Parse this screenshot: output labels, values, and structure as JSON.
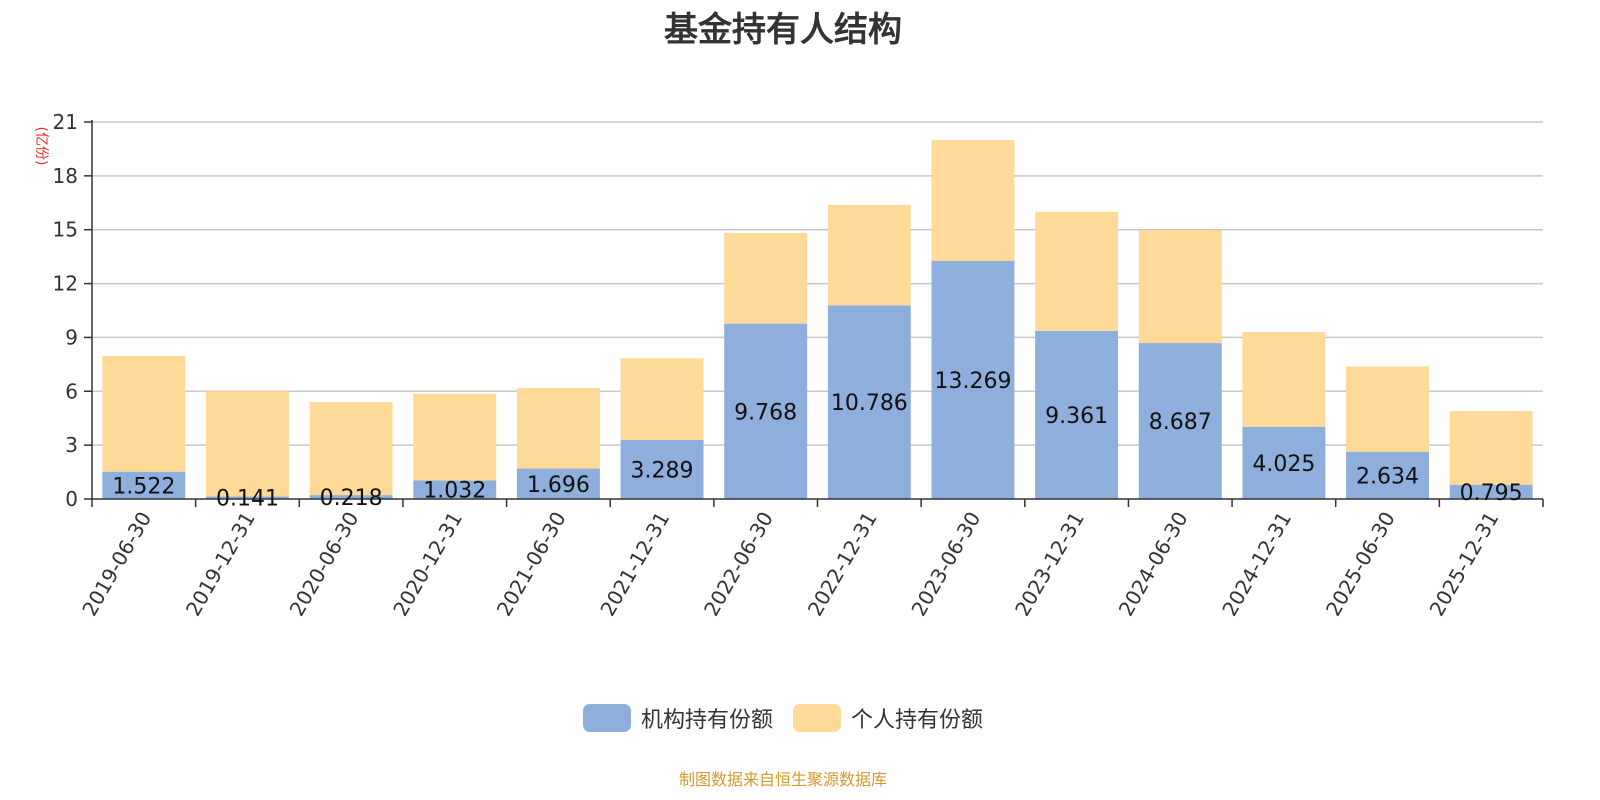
{
  "title": "基金持有人结构",
  "source": "制图数据来自恒生聚源数据库",
  "colors": {
    "institution": "#8eaedb",
    "individual": "#fed998",
    "unit": "#e8312a",
    "source": "#d39a2c",
    "grid": "#c8c8c8",
    "axis": "#333333"
  },
  "legend": [
    {
      "label": "机构持有份额",
      "color": "#8eaedb"
    },
    {
      "label": "个人持有份额",
      "color": "#fed998"
    }
  ],
  "chart_data": {
    "type": "bar",
    "stacked": true,
    "title": "基金持有人结构",
    "ylabel": "(亿份)",
    "ylim": [
      0,
      21
    ],
    "yticks": [
      0,
      3,
      6,
      9,
      12,
      15,
      18,
      21
    ],
    "grid": true,
    "legend_position": "bottom",
    "categories": [
      "2019-06-30",
      "2019-12-31",
      "2020-06-30",
      "2020-12-31",
      "2021-06-30",
      "2021-12-31",
      "2022-06-30",
      "2022-12-31",
      "2023-06-30",
      "2023-12-31",
      "2024-06-30",
      "2024-12-31",
      "2025-06-30",
      "2025-12-31"
    ],
    "series": [
      {
        "name": "机构持有份额",
        "color": "#8eaedb",
        "values": [
          1.522,
          0.141,
          0.218,
          1.032,
          1.696,
          3.289,
          9.768,
          10.786,
          13.269,
          9.361,
          8.687,
          4.025,
          2.634,
          0.795
        ],
        "labels": [
          "1.522",
          "0.141",
          "0.218",
          "1.032",
          "1.696",
          "3.289",
          "9.768",
          "10.786",
          "13.269",
          "9.361",
          "8.687",
          "4.025",
          "2.634",
          "0.795"
        ]
      },
      {
        "name": "个人持有份额",
        "color": "#fed998",
        "values": [
          6.45,
          5.86,
          5.18,
          4.83,
          4.48,
          4.55,
          5.05,
          5.6,
          6.73,
          6.64,
          6.29,
          5.27,
          4.75,
          4.1
        ]
      }
    ]
  }
}
